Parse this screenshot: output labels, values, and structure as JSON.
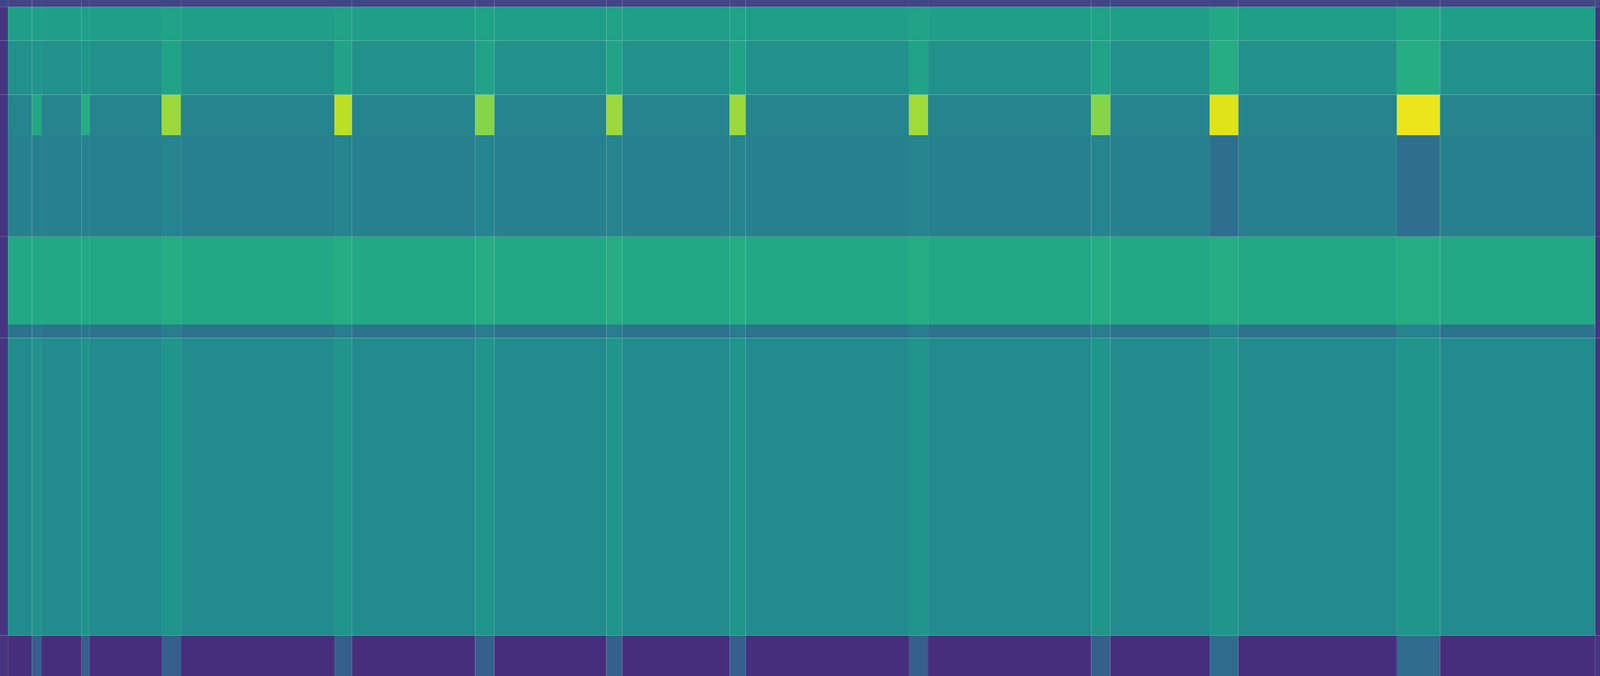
{
  "chart_data": {
    "type": "heatmap",
    "color": "viridis",
    "tick_labels": false,
    "xlim": [
      0,
      100
    ],
    "ylim": [
      0,
      100
    ],
    "color_range": [
      0,
      1
    ],
    "x_edges": [
      0,
      0.5,
      2,
      2.6,
      5.1,
      5.6,
      10.1,
      11.3,
      20.9,
      22.0,
      29.7,
      30.9,
      37.9,
      38.9,
      45.6,
      46.6,
      56.8,
      58.0,
      68.2,
      69.4,
      75.6,
      77.4,
      87.3,
      90.0,
      99.7,
      100
    ],
    "y_edges": [
      0,
      6,
      50,
      52,
      65,
      80,
      86,
      94,
      99,
      100
    ],
    "cells": [
      [
        0.15,
        0.13,
        0.3,
        0.13,
        0.3,
        0.13,
        0.3,
        0.13,
        0.3,
        0.13,
        0.3,
        0.13,
        0.3,
        0.13,
        0.3,
        0.13,
        0.3,
        0.13,
        0.3,
        0.13,
        0.35,
        0.13,
        0.35,
        0.13,
        0.15
      ],
      [
        0.15,
        0.48,
        0.5,
        0.48,
        0.5,
        0.48,
        0.52,
        0.48,
        0.52,
        0.48,
        0.52,
        0.48,
        0.52,
        0.48,
        0.52,
        0.48,
        0.52,
        0.48,
        0.52,
        0.48,
        0.52,
        0.48,
        0.52,
        0.48,
        0.15
      ],
      [
        0.15,
        0.38,
        0.4,
        0.38,
        0.4,
        0.38,
        0.42,
        0.38,
        0.42,
        0.38,
        0.42,
        0.38,
        0.42,
        0.38,
        0.42,
        0.38,
        0.42,
        0.38,
        0.42,
        0.38,
        0.45,
        0.38,
        0.45,
        0.38,
        0.15
      ],
      [
        0.15,
        0.6,
        0.6,
        0.6,
        0.6,
        0.6,
        0.62,
        0.6,
        0.62,
        0.6,
        0.62,
        0.6,
        0.62,
        0.6,
        0.62,
        0.6,
        0.62,
        0.6,
        0.62,
        0.6,
        0.62,
        0.6,
        0.62,
        0.6,
        0.15
      ],
      [
        0.15,
        0.43,
        0.43,
        0.43,
        0.43,
        0.43,
        0.45,
        0.43,
        0.45,
        0.43,
        0.45,
        0.43,
        0.45,
        0.43,
        0.45,
        0.43,
        0.45,
        0.43,
        0.45,
        0.43,
        0.36,
        0.43,
        0.36,
        0.43,
        0.15
      ],
      [
        0.15,
        0.45,
        0.6,
        0.45,
        0.62,
        0.45,
        0.85,
        0.45,
        0.9,
        0.45,
        0.82,
        0.45,
        0.85,
        0.45,
        0.85,
        0.45,
        0.86,
        0.45,
        0.82,
        0.45,
        0.95,
        0.45,
        0.97,
        0.45,
        0.15
      ],
      [
        0.15,
        0.5,
        0.52,
        0.5,
        0.52,
        0.5,
        0.58,
        0.5,
        0.58,
        0.5,
        0.58,
        0.5,
        0.58,
        0.5,
        0.58,
        0.5,
        0.58,
        0.5,
        0.58,
        0.5,
        0.62,
        0.5,
        0.62,
        0.5,
        0.15
      ],
      [
        0.15,
        0.56,
        0.56,
        0.56,
        0.56,
        0.56,
        0.58,
        0.56,
        0.58,
        0.56,
        0.58,
        0.56,
        0.58,
        0.56,
        0.58,
        0.56,
        0.58,
        0.56,
        0.58,
        0.56,
        0.6,
        0.56,
        0.6,
        0.56,
        0.15
      ],
      [
        0.2,
        0.2,
        0.2,
        0.2,
        0.2,
        0.2,
        0.2,
        0.2,
        0.2,
        0.2,
        0.2,
        0.2,
        0.2,
        0.2,
        0.2,
        0.2,
        0.2,
        0.2,
        0.2,
        0.2,
        0.2,
        0.2,
        0.2,
        0.2,
        0.2
      ]
    ]
  }
}
